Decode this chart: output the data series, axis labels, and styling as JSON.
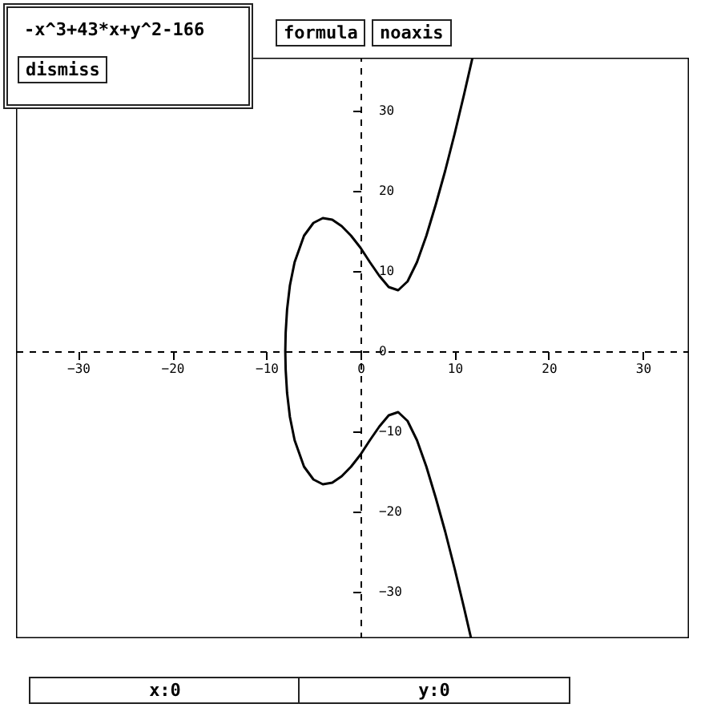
{
  "chart_data": {
    "type": "line",
    "title": "-x^3+43*x+y^2-166",
    "annotations": [
      "dismiss",
      "formula",
      "noaxis",
      "x:0",
      "y:0"
    ],
    "series": [
      {
        "color": "#000000",
        "x": [
          11.9,
          11,
          10,
          9,
          8,
          7,
          6,
          5,
          4,
          3,
          2,
          1,
          0,
          -1,
          -2,
          -3,
          -4,
          -5,
          -6,
          -7,
          -7.5,
          -7.8,
          -7.95,
          -7.99,
          -7.95,
          -7.8,
          -7.5,
          -7,
          -6,
          -5,
          -4,
          -3,
          -2,
          -1,
          0,
          1,
          2,
          3,
          4,
          5,
          6,
          7,
          8,
          9,
          10,
          11,
          11.75
        ],
        "values": [
          36.6,
          32,
          27.1,
          22.5,
          18.3,
          14.4,
          11.1,
          8.7,
          7.6,
          8,
          9.4,
          11.1,
          12.9,
          14.4,
          15.6,
          16.4,
          16.6,
          16,
          14.4,
          11.1,
          8.2,
          5.2,
          2.3,
          0,
          -2.3,
          -5.2,
          -8.2,
          -11.1,
          -14.4,
          -16,
          -16.6,
          -16.4,
          -15.6,
          -14.4,
          -12.9,
          -11.1,
          -9.4,
          -8,
          -7.6,
          -8.7,
          -11.1,
          -14.4,
          -18.3,
          -22.5,
          -27.1,
          -32,
          -35.8
        ]
      }
    ],
    "xlim": [
      -36.6,
      34.9
    ],
    "ylim": [
      -35.8,
      36.6
    ],
    "xticks": [
      -30,
      -20,
      -10,
      0,
      10,
      20,
      30
    ],
    "yticks": [
      -30,
      -20,
      -10,
      0,
      10,
      20,
      30
    ],
    "line_style": "solid"
  }
}
